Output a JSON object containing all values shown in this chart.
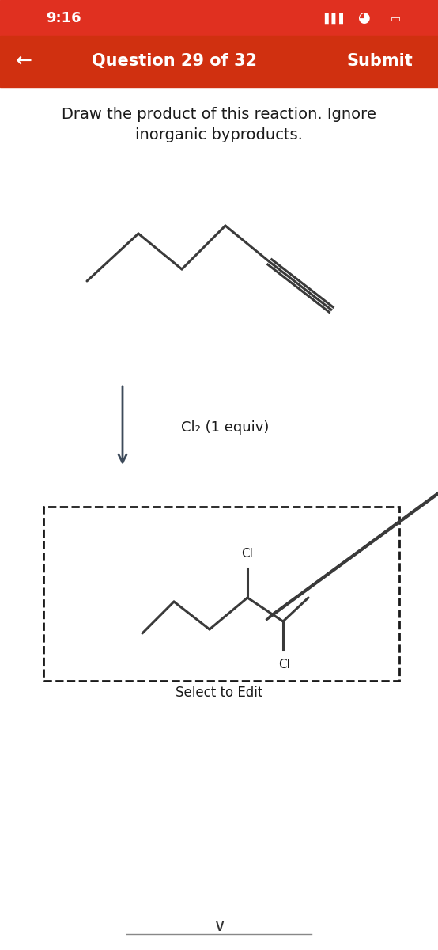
{
  "bg_color": "#ffffff",
  "status_bar_bg": "#e03020",
  "status_bar_text": "9:16",
  "nav_bar_bg": "#d03010",
  "nav_title": "Question 29 of 32",
  "nav_submit": "Submit",
  "question_text_line1": "Draw the product of this reaction. Ignore",
  "question_text_line2": "inorganic byproducts.",
  "reagent_label": "Cl₂ (1 equiv)",
  "product_label": "Select to Edit",
  "cl_label_top": "Cl",
  "cl_label_bottom": "Cl",
  "line_color": "#3a3a3a",
  "text_color": "#1a1a1a",
  "dashed_box_color": "#1a1a1a",
  "arrow_color": "#3d4a5a"
}
